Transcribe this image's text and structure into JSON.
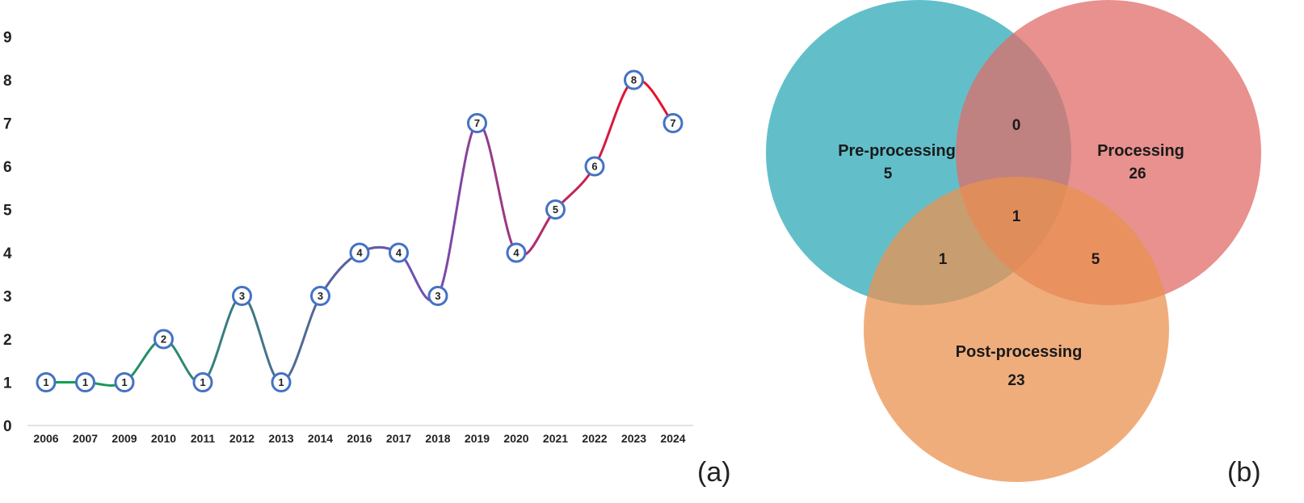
{
  "chart_data": [
    {
      "type": "line",
      "panel_label": "(a)",
      "categories": [
        "2006",
        "2007",
        "2009",
        "2010",
        "2011",
        "2012",
        "2013",
        "2014",
        "2016",
        "2017",
        "2018",
        "2019",
        "2020",
        "2021",
        "2022",
        "2023",
        "2024"
      ],
      "values": [
        1,
        1,
        1,
        2,
        1,
        3,
        1,
        3,
        4,
        4,
        3,
        7,
        4,
        5,
        6,
        8,
        7
      ],
      "yticks": [
        "0",
        "1",
        "2",
        "3",
        "4",
        "5",
        "6",
        "7",
        "8",
        "9"
      ],
      "ylim": [
        0,
        9
      ],
      "grid": false,
      "smooth": true,
      "line_gradient": [
        "#0aa64a",
        "#6f4fb8",
        "#e8102c"
      ],
      "marker_stroke": "#4472c4"
    },
    {
      "type": "venn",
      "panel_label": "(b)",
      "sets": [
        {
          "label": "Pre-processing",
          "value": "5",
          "color": "#2eaab8"
        },
        {
          "label": "Processing",
          "value": "26",
          "color": "#e06c68"
        },
        {
          "label": "Post-processing",
          "value": "23",
          "color": "#eb9250"
        }
      ],
      "intersections": {
        "pre_processing_and_processing": "0",
        "pre_and_post": "1",
        "processing_and_post": "5",
        "all_three": "1"
      }
    }
  ]
}
